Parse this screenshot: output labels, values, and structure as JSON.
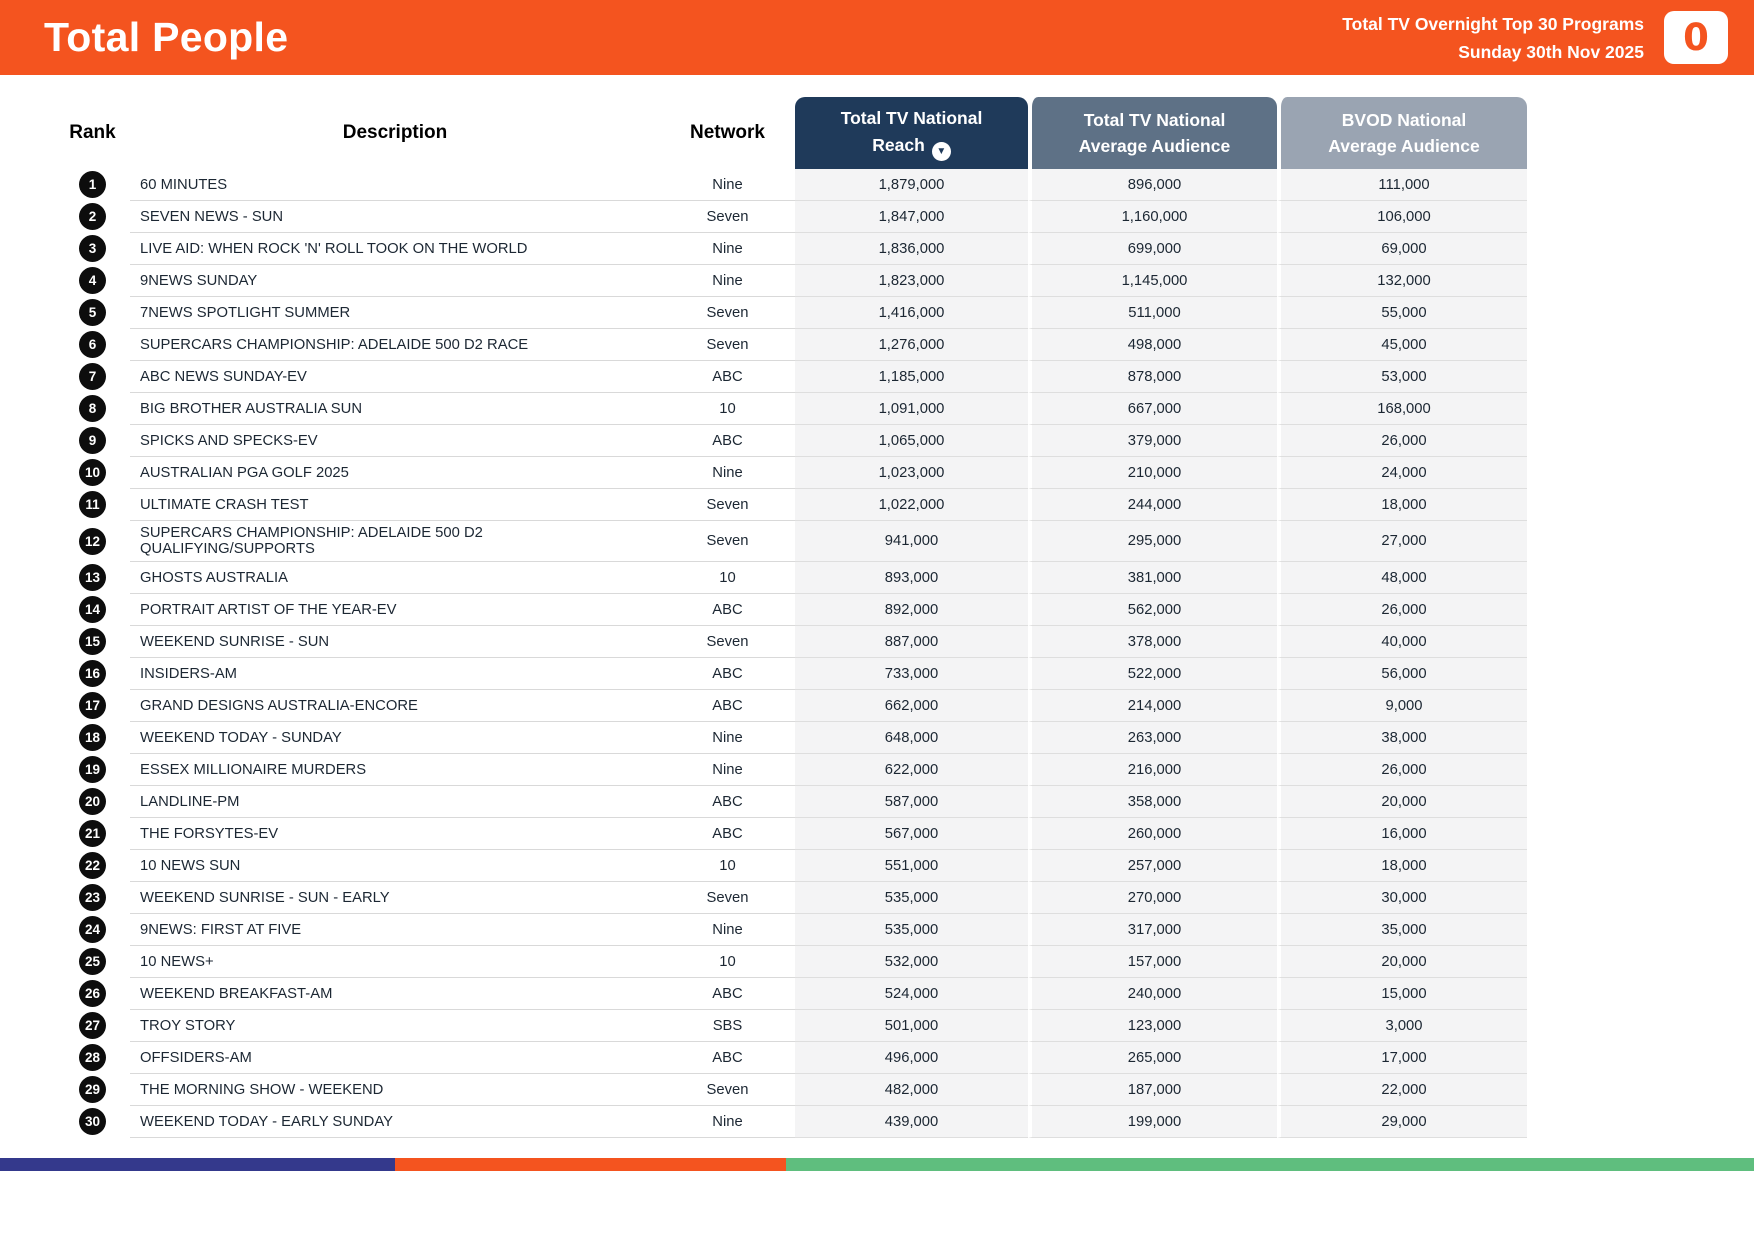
{
  "header": {
    "title": "Total People",
    "report_title": "Total TV Overnight Top 30 Programs",
    "report_date": "Sunday 30th Nov 2025",
    "logo_glyph": "0"
  },
  "theme": {
    "orange": "#F4541F",
    "navy": "#1F3A5A",
    "slate": "#5E7186",
    "gray_blue": "#9AA4B2",
    "row_line": "#D9D9D9",
    "numeric_bg": "#F4F4F5",
    "text_dark": "#1C2733"
  },
  "table": {
    "columns": {
      "rank": "Rank",
      "description": "Description",
      "network": "Network",
      "reach_line1": "Total TV National",
      "reach_line2": "Reach",
      "sort_icon_glyph": "▼",
      "avg_line1": "Total TV National",
      "avg_line2": "Average Audience",
      "bvod_line1": "BVOD National",
      "bvod_line2": "Average Audience"
    },
    "rows": [
      {
        "rank": "1",
        "description": "60 MINUTES",
        "network": "Nine",
        "reach": "1,879,000",
        "avg_audience": "896,000",
        "bvod": "111,000"
      },
      {
        "rank": "2",
        "description": "SEVEN NEWS - SUN",
        "network": "Seven",
        "reach": "1,847,000",
        "avg_audience": "1,160,000",
        "bvod": "106,000"
      },
      {
        "rank": "3",
        "description": "LIVE AID: WHEN ROCK 'N' ROLL TOOK ON THE WORLD",
        "network": "Nine",
        "reach": "1,836,000",
        "avg_audience": "699,000",
        "bvod": "69,000"
      },
      {
        "rank": "4",
        "description": "9NEWS SUNDAY",
        "network": "Nine",
        "reach": "1,823,000",
        "avg_audience": "1,145,000",
        "bvod": "132,000"
      },
      {
        "rank": "5",
        "description": "7NEWS SPOTLIGHT SUMMER",
        "network": "Seven",
        "reach": "1,416,000",
        "avg_audience": "511,000",
        "bvod": "55,000"
      },
      {
        "rank": "6",
        "description": "SUPERCARS CHAMPIONSHIP: ADELAIDE 500 D2 RACE",
        "network": "Seven",
        "reach": "1,276,000",
        "avg_audience": "498,000",
        "bvod": "45,000"
      },
      {
        "rank": "7",
        "description": "ABC NEWS SUNDAY-EV",
        "network": "ABC",
        "reach": "1,185,000",
        "avg_audience": "878,000",
        "bvod": "53,000"
      },
      {
        "rank": "8",
        "description": "BIG BROTHER AUSTRALIA SUN",
        "network": "10",
        "reach": "1,091,000",
        "avg_audience": "667,000",
        "bvod": "168,000"
      },
      {
        "rank": "9",
        "description": "SPICKS AND SPECKS-EV",
        "network": "ABC",
        "reach": "1,065,000",
        "avg_audience": "379,000",
        "bvod": "26,000"
      },
      {
        "rank": "10",
        "description": "AUSTRALIAN PGA GOLF 2025",
        "network": "Nine",
        "reach": "1,023,000",
        "avg_audience": "210,000",
        "bvod": "24,000"
      },
      {
        "rank": "11",
        "description": "ULTIMATE CRASH TEST",
        "network": "Seven",
        "reach": "1,022,000",
        "avg_audience": "244,000",
        "bvod": "18,000"
      },
      {
        "rank": "12",
        "description": "SUPERCARS CHAMPIONSHIP: ADELAIDE 500 D2 QUALIFYING/SUPPORTS",
        "network": "Seven",
        "reach": "941,000",
        "avg_audience": "295,000",
        "bvod": "27,000"
      },
      {
        "rank": "13",
        "description": "GHOSTS AUSTRALIA",
        "network": "10",
        "reach": "893,000",
        "avg_audience": "381,000",
        "bvod": "48,000"
      },
      {
        "rank": "14",
        "description": "PORTRAIT ARTIST OF THE YEAR-EV",
        "network": "ABC",
        "reach": "892,000",
        "avg_audience": "562,000",
        "bvod": "26,000"
      },
      {
        "rank": "15",
        "description": "WEEKEND SUNRISE - SUN",
        "network": "Seven",
        "reach": "887,000",
        "avg_audience": "378,000",
        "bvod": "40,000"
      },
      {
        "rank": "16",
        "description": "INSIDERS-AM",
        "network": "ABC",
        "reach": "733,000",
        "avg_audience": "522,000",
        "bvod": "56,000"
      },
      {
        "rank": "17",
        "description": "GRAND DESIGNS AUSTRALIA-ENCORE",
        "network": "ABC",
        "reach": "662,000",
        "avg_audience": "214,000",
        "bvod": "9,000"
      },
      {
        "rank": "18",
        "description": "WEEKEND TODAY - SUNDAY",
        "network": "Nine",
        "reach": "648,000",
        "avg_audience": "263,000",
        "bvod": "38,000"
      },
      {
        "rank": "19",
        "description": "ESSEX MILLIONAIRE MURDERS",
        "network": "Nine",
        "reach": "622,000",
        "avg_audience": "216,000",
        "bvod": "26,000"
      },
      {
        "rank": "20",
        "description": "LANDLINE-PM",
        "network": "ABC",
        "reach": "587,000",
        "avg_audience": "358,000",
        "bvod": "20,000"
      },
      {
        "rank": "21",
        "description": "THE FORSYTES-EV",
        "network": "ABC",
        "reach": "567,000",
        "avg_audience": "260,000",
        "bvod": "16,000"
      },
      {
        "rank": "22",
        "description": "10 NEWS SUN",
        "network": "10",
        "reach": "551,000",
        "avg_audience": "257,000",
        "bvod": "18,000"
      },
      {
        "rank": "23",
        "description": "WEEKEND SUNRISE - SUN - EARLY",
        "network": "Seven",
        "reach": "535,000",
        "avg_audience": "270,000",
        "bvod": "30,000"
      },
      {
        "rank": "24",
        "description": "9NEWS: FIRST AT FIVE",
        "network": "Nine",
        "reach": "535,000",
        "avg_audience": "317,000",
        "bvod": "35,000"
      },
      {
        "rank": "25",
        "description": "10 NEWS+",
        "network": "10",
        "reach": "532,000",
        "avg_audience": "157,000",
        "bvod": "20,000"
      },
      {
        "rank": "26",
        "description": "WEEKEND BREAKFAST-AM",
        "network": "ABC",
        "reach": "524,000",
        "avg_audience": "240,000",
        "bvod": "15,000"
      },
      {
        "rank": "27",
        "description": "TROY STORY",
        "network": "SBS",
        "reach": "501,000",
        "avg_audience": "123,000",
        "bvod": "3,000"
      },
      {
        "rank": "28",
        "description": "OFFSIDERS-AM",
        "network": "ABC",
        "reach": "496,000",
        "avg_audience": "265,000",
        "bvod": "17,000"
      },
      {
        "rank": "29",
        "description": "THE MORNING SHOW - WEEKEND",
        "network": "Seven",
        "reach": "482,000",
        "avg_audience": "187,000",
        "bvod": "22,000"
      },
      {
        "rank": "30",
        "description": "WEEKEND TODAY - EARLY SUNDAY",
        "network": "Nine",
        "reach": "439,000",
        "avg_audience": "199,000",
        "bvod": "29,000"
      }
    ]
  },
  "footer": {
    "segments": [
      {
        "name": "blue",
        "color": "#34398C",
        "width_pct": 22.5
      },
      {
        "name": "orange",
        "color": "#F4541F",
        "width_pct": 22.3
      },
      {
        "name": "green",
        "color": "#5FBE7E",
        "width_pct": 55.2
      }
    ]
  }
}
